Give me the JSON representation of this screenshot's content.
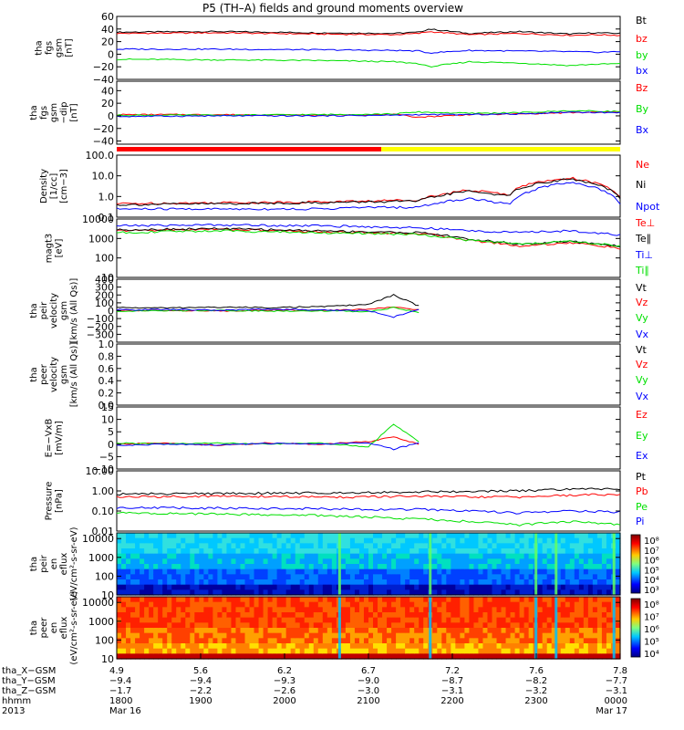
{
  "title": "P5 (TH–A) fields and ground moments overview",
  "colors": {
    "black": "#000000",
    "red": "#ff0000",
    "green": "#00e000",
    "blue": "#0000ff",
    "yellow": "#ffff00",
    "cyan": "#00c8ff"
  },
  "chart_data": [
    {
      "type": "line",
      "panel": "fgs_gsm",
      "ylabel": [
        "tha",
        "fgs",
        "gsm",
        "[nT]"
      ],
      "ylim": [
        -40,
        60
      ],
      "yticks": [
        "60",
        "40",
        "20",
        "0",
        "−20",
        "−40"
      ],
      "yticks_values": [
        60,
        40,
        20,
        0,
        -20,
        -40
      ],
      "legend": [
        {
          "label": "Bt",
          "color": "#000000"
        },
        {
          "label": "bz",
          "color": "#ff0000"
        },
        {
          "label": "by",
          "color": "#00e000"
        },
        {
          "label": "bx",
          "color": "#0000ff"
        }
      ],
      "series": [
        {
          "name": "Bt",
          "color": "#000000",
          "x": [
            0,
            0.2,
            0.4,
            0.55,
            0.6,
            0.62,
            0.7,
            0.8,
            0.9,
            0.95,
            1.0
          ],
          "values": [
            35,
            36,
            34,
            33,
            35,
            40,
            33,
            36,
            32,
            34,
            33
          ]
        },
        {
          "name": "bz",
          "color": "#ff0000",
          "x": [
            0,
            0.2,
            0.4,
            0.55,
            0.6,
            0.62,
            0.7,
            0.8,
            0.9,
            0.95,
            1.0
          ],
          "values": [
            33,
            34,
            32,
            31,
            33,
            36,
            31,
            33,
            30,
            31,
            30
          ]
        },
        {
          "name": "by",
          "color": "#00e000",
          "x": [
            0,
            0.2,
            0.4,
            0.55,
            0.6,
            0.62,
            0.7,
            0.8,
            0.9,
            0.95,
            1.0
          ],
          "values": [
            -8,
            -9,
            -10,
            -12,
            -15,
            -20,
            -12,
            -14,
            -18,
            -16,
            -15
          ]
        },
        {
          "name": "bx",
          "color": "#0000ff",
          "x": [
            0,
            0.2,
            0.4,
            0.55,
            0.6,
            0.62,
            0.7,
            0.8,
            0.9,
            0.95,
            1.0
          ],
          "values": [
            8,
            8,
            7,
            6,
            5,
            2,
            6,
            5,
            4,
            3,
            4
          ]
        }
      ]
    },
    {
      "type": "line",
      "panel": "fgs_gsm_dip",
      "ylabel": [
        "tha",
        "fgs",
        "gsm",
        "−dip",
        "[nT]"
      ],
      "ylim": [
        -45,
        55
      ],
      "yticks": [
        "40",
        "20",
        "0",
        "−20",
        "−40"
      ],
      "yticks_values": [
        40,
        20,
        0,
        -20,
        -40
      ],
      "legend": [
        {
          "label": "Bz",
          "color": "#ff0000"
        },
        {
          "label": "By",
          "color": "#00e000"
        },
        {
          "label": "Bx",
          "color": "#0000ff"
        }
      ],
      "series": [
        {
          "name": "Bz",
          "color": "#ff0000",
          "x": [
            0,
            0.2,
            0.4,
            0.55,
            0.6,
            0.7,
            0.8,
            0.9,
            1.0
          ],
          "values": [
            2,
            2,
            1,
            2,
            -2,
            2,
            3,
            5,
            6
          ]
        },
        {
          "name": "By",
          "color": "#00e000",
          "x": [
            0,
            0.2,
            0.4,
            0.55,
            0.6,
            0.7,
            0.8,
            0.9,
            1.0
          ],
          "values": [
            1,
            1,
            2,
            3,
            6,
            4,
            5,
            8,
            7
          ]
        },
        {
          "name": "Bx",
          "color": "#0000ff",
          "x": [
            0,
            0.2,
            0.4,
            0.55,
            0.6,
            0.7,
            0.8,
            0.9,
            1.0
          ],
          "values": [
            -1,
            0,
            0,
            1,
            2,
            2,
            3,
            6,
            5
          ]
        }
      ]
    },
    {
      "type": "line",
      "panel": "density",
      "yscale": "log",
      "ylabel": [
        "Density",
        "[1/cc]",
        "[cm−3]"
      ],
      "ylim": [
        0.1,
        100
      ],
      "yticks": [
        "100.0",
        "10.0",
        "1.0",
        "0.1"
      ],
      "yticks_values": [
        100,
        10,
        1,
        0.1
      ],
      "legend": [
        {
          "label": "Ne",
          "color": "#ff0000"
        },
        {
          "label": "Ni",
          "color": "#000000"
        },
        {
          "label": "Npot",
          "color": "#0000ff"
        }
      ],
      "series": [
        {
          "name": "Ne",
          "color": "#ff0000",
          "x": [
            0,
            0.2,
            0.4,
            0.5,
            0.6,
            0.7,
            0.78,
            0.8,
            0.9,
            1.0
          ],
          "values": [
            0.45,
            0.5,
            0.55,
            0.6,
            0.7,
            2.0,
            1.2,
            3.0,
            8.0,
            0.9
          ]
        },
        {
          "name": "Ni",
          "color": "#000000",
          "x": [
            0,
            0.2,
            0.4,
            0.5,
            0.6,
            0.7,
            0.78,
            0.8,
            0.9,
            1.0
          ],
          "values": [
            0.4,
            0.45,
            0.5,
            0.55,
            0.6,
            1.8,
            1.0,
            2.5,
            7.0,
            0.8
          ]
        },
        {
          "name": "Npot",
          "color": "#0000ff",
          "x": [
            0,
            0.2,
            0.4,
            0.5,
            0.6,
            0.7,
            0.78,
            0.8,
            0.9,
            1.0
          ],
          "values": [
            0.25,
            0.25,
            0.25,
            0.3,
            0.3,
            0.8,
            0.4,
            1.0,
            5.0,
            0.4
          ]
        }
      ]
    },
    {
      "type": "line",
      "panel": "temperature",
      "yscale": "log",
      "ylabel": [
        "magt3",
        "[eV]"
      ],
      "ylim": [
        10,
        10000
      ],
      "yticks": [
        "10000",
        "1000",
        "100",
        "10"
      ],
      "yticks_values": [
        10000,
        1000,
        100,
        10
      ],
      "legend": [
        {
          "label": "Te⊥",
          "color": "#ff0000"
        },
        {
          "label": "Te∥",
          "color": "#000000"
        },
        {
          "label": "Ti⊥",
          "color": "#0000ff"
        },
        {
          "label": "Ti∥",
          "color": "#00e000"
        }
      ],
      "series": [
        {
          "name": "Te⊥",
          "color": "#ff0000",
          "x": [
            0,
            0.2,
            0.4,
            0.5,
            0.6,
            0.7,
            0.8,
            0.9,
            1.0
          ],
          "values": [
            2500,
            3000,
            2200,
            2000,
            1800,
            800,
            400,
            600,
            300
          ]
        },
        {
          "name": "Te∥",
          "color": "#000000",
          "x": [
            0,
            0.2,
            0.4,
            0.5,
            0.6,
            0.7,
            0.8,
            0.9,
            1.0
          ],
          "values": [
            2800,
            3200,
            2500,
            2200,
            2000,
            900,
            500,
            700,
            400
          ]
        },
        {
          "name": "Ti⊥",
          "color": "#0000ff",
          "x": [
            0,
            0.2,
            0.4,
            0.5,
            0.6,
            0.7,
            0.8,
            0.9,
            1.0
          ],
          "values": [
            4500,
            5000,
            4500,
            4000,
            3500,
            2500,
            2000,
            2500,
            1500
          ]
        },
        {
          "name": "Ti∥",
          "color": "#00e000",
          "x": [
            0,
            0.2,
            0.4,
            0.5,
            0.6,
            0.7,
            0.8,
            0.9,
            1.0
          ],
          "values": [
            2000,
            2500,
            2000,
            1800,
            1600,
            800,
            500,
            700,
            400
          ]
        }
      ]
    },
    {
      "type": "line",
      "panel": "ion_velocity",
      "ylabel": [
        "tha",
        "peir",
        "velocity",
        "gsm",
        "[km/s (All Qs)]"
      ],
      "ylim": [
        -400,
        400
      ],
      "yticks": [
        "400",
        "300",
        "200",
        "100",
        "0",
        "−100",
        "−200",
        "−300"
      ],
      "yticks_values": [
        400,
        300,
        200,
        100,
        0,
        -100,
        -200,
        -300
      ],
      "legend": [
        {
          "label": "Vt",
          "color": "#000000"
        },
        {
          "label": "Vz",
          "color": "#ff0000"
        },
        {
          "label": "Vy",
          "color": "#00e000"
        },
        {
          "label": "Vx",
          "color": "#0000ff"
        }
      ],
      "series": [
        {
          "name": "Vt",
          "color": "#000000",
          "x": [
            0,
            0.1,
            0.2,
            0.3,
            0.4,
            0.5,
            0.55,
            0.6
          ],
          "values": [
            40,
            35,
            45,
            40,
            50,
            80,
            200,
            60
          ]
        },
        {
          "name": "Vz",
          "color": "#ff0000",
          "x": [
            0,
            0.1,
            0.2,
            0.3,
            0.4,
            0.5,
            0.55,
            0.6
          ],
          "values": [
            0,
            5,
            -5,
            10,
            0,
            20,
            50,
            10
          ]
        },
        {
          "name": "Vy",
          "color": "#00e000",
          "x": [
            0,
            0.1,
            0.2,
            0.3,
            0.4,
            0.5,
            0.55,
            0.6
          ],
          "values": [
            -5,
            0,
            5,
            -5,
            0,
            -10,
            40,
            -20
          ]
        },
        {
          "name": "Vx",
          "color": "#0000ff",
          "x": [
            0,
            0.1,
            0.2,
            0.3,
            0.4,
            0.5,
            0.55,
            0.6
          ],
          "values": [
            10,
            15,
            5,
            20,
            10,
            0,
            -80,
            20
          ]
        }
      ]
    },
    {
      "type": "line",
      "panel": "electron_velocity",
      "ylabel": [
        "tha",
        "peer",
        "velocity",
        "gsm",
        "[km/s (All Qs)]"
      ],
      "ylim": [
        0,
        1
      ],
      "yticks": [
        "1.0",
        "0.8",
        "0.6",
        "0.4",
        "0.2",
        "0.0"
      ],
      "yticks_values": [
        1.0,
        0.8,
        0.6,
        0.4,
        0.2,
        0.0
      ],
      "legend": [
        {
          "label": "Vt",
          "color": "#000000"
        },
        {
          "label": "Vz",
          "color": "#ff0000"
        },
        {
          "label": "Vy",
          "color": "#00e000"
        },
        {
          "label": "Vx",
          "color": "#0000ff"
        }
      ],
      "series": []
    },
    {
      "type": "line",
      "panel": "efield",
      "ylabel": [
        "E=−VxB",
        "[mV/m]"
      ],
      "ylim": [
        -10,
        15
      ],
      "yticks": [
        "15",
        "10",
        "5",
        "0",
        "−5",
        "−10"
      ],
      "yticks_values": [
        15,
        10,
        5,
        0,
        -5,
        -10
      ],
      "legend": [
        {
          "label": "Ez",
          "color": "#ff0000"
        },
        {
          "label": "Ey",
          "color": "#00e000"
        },
        {
          "label": "Ex",
          "color": "#0000ff"
        }
      ],
      "series": [
        {
          "name": "Ez",
          "color": "#ff0000",
          "x": [
            0,
            0.1,
            0.2,
            0.3,
            0.4,
            0.5,
            0.55,
            0.6
          ],
          "values": [
            0,
            0.5,
            -0.5,
            0.5,
            0,
            1,
            3,
            0
          ]
        },
        {
          "name": "Ey",
          "color": "#00e000",
          "x": [
            0,
            0.1,
            0.2,
            0.3,
            0.4,
            0.5,
            0.55,
            0.6
          ],
          "values": [
            0.5,
            0,
            0.5,
            0,
            0.5,
            -1,
            8,
            1
          ]
        },
        {
          "name": "Ex",
          "color": "#0000ff",
          "x": [
            0,
            0.1,
            0.2,
            0.3,
            0.4,
            0.5,
            0.55,
            0.6
          ],
          "values": [
            -0.5,
            0,
            -0.3,
            0.3,
            0,
            0.5,
            -2,
            0.5
          ]
        }
      ]
    },
    {
      "type": "line",
      "panel": "pressure",
      "yscale": "log",
      "ylabel": [
        "Pressure",
        "[nPa]"
      ],
      "ylim": [
        0.01,
        10
      ],
      "yticks": [
        "10.00",
        "1.00",
        "0.10",
        "0.01"
      ],
      "yticks_values": [
        10,
        1,
        0.1,
        0.01
      ],
      "legend": [
        {
          "label": "Pt",
          "color": "#000000"
        },
        {
          "label": "Pb",
          "color": "#ff0000"
        },
        {
          "label": "Pe",
          "color": "#00e000"
        },
        {
          "label": "Pi",
          "color": "#0000ff"
        }
      ],
      "series": [
        {
          "name": "Pt",
          "color": "#000000",
          "x": [
            0,
            0.2,
            0.4,
            0.5,
            0.6,
            0.7,
            0.8,
            0.9,
            1.0
          ],
          "values": [
            0.7,
            0.75,
            0.8,
            0.85,
            0.9,
            0.95,
            1.0,
            1.2,
            1.3
          ]
        },
        {
          "name": "Pb",
          "color": "#ff0000",
          "x": [
            0,
            0.2,
            0.4,
            0.5,
            0.6,
            0.7,
            0.8,
            0.9,
            1.0
          ],
          "values": [
            0.5,
            0.55,
            0.5,
            0.5,
            0.55,
            0.5,
            0.5,
            0.6,
            0.7
          ]
        },
        {
          "name": "Pe",
          "color": "#00e000",
          "x": [
            0,
            0.2,
            0.4,
            0.5,
            0.6,
            0.7,
            0.8,
            0.9,
            1.0
          ],
          "values": [
            0.08,
            0.07,
            0.06,
            0.05,
            0.04,
            0.03,
            0.02,
            0.03,
            0.02
          ]
        },
        {
          "name": "Pi",
          "color": "#0000ff",
          "x": [
            0,
            0.2,
            0.4,
            0.5,
            0.6,
            0.7,
            0.8,
            0.9,
            1.0
          ],
          "values": [
            0.15,
            0.14,
            0.13,
            0.12,
            0.12,
            0.1,
            0.08,
            0.1,
            0.09
          ]
        }
      ]
    },
    {
      "type": "heatmap",
      "panel": "ion_spectrogram",
      "yscale": "log",
      "ylabel": [
        "tha",
        "peir",
        "en",
        "eflux",
        "(eV/cm²-s-sr-eV)"
      ],
      "ylim": [
        10,
        20000
      ],
      "yticks": [
        "10000",
        "1000",
        "100",
        "10"
      ],
      "yticks_values": [
        10000,
        1000,
        100,
        10
      ],
      "colorbar_ticks": [
        "10⁸",
        "10⁷",
        "10⁶",
        "10⁵",
        "10⁴",
        "10³"
      ]
    },
    {
      "type": "heatmap",
      "panel": "electron_spectrogram",
      "yscale": "log",
      "ylabel": [
        "tha",
        "peer",
        "en",
        "eflux",
        "(eV/cm²-s-sr-eV)"
      ],
      "ylim": [
        10,
        20000
      ],
      "yticks": [
        "10000",
        "1000",
        "100",
        "10"
      ],
      "yticks_values": [
        10000,
        1000,
        100,
        10
      ],
      "colorbar_ticks": [
        "10⁸",
        "10⁷",
        "10⁶",
        "10⁵",
        "10⁴"
      ]
    }
  ],
  "xaxis": {
    "row_labels": [
      "tha_X−GSM",
      "tha_Y−GSM",
      "tha_Z−GSM",
      "hhmm",
      "2013"
    ],
    "columns": [
      {
        "vals": [
          "4.9",
          "−9.4",
          "−1.7",
          "1800"
        ],
        "date": "Mar 16"
      },
      {
        "vals": [
          "5.6",
          "−9.4",
          "−2.2",
          "1900"
        ],
        "date": ""
      },
      {
        "vals": [
          "6.2",
          "−9.3",
          "−2.6",
          "2000"
        ],
        "date": ""
      },
      {
        "vals": [
          "6.7",
          "−9.0",
          "−3.0",
          "2100"
        ],
        "date": ""
      },
      {
        "vals": [
          "7.2",
          "−8.7",
          "−3.1",
          "2200"
        ],
        "date": ""
      },
      {
        "vals": [
          "7.6",
          "−8.2",
          "−3.2",
          "2300"
        ],
        "date": ""
      },
      {
        "vals": [
          "7.8",
          "−7.7",
          "−3.1",
          "0000"
        ],
        "date": "Mar 17"
      }
    ]
  }
}
